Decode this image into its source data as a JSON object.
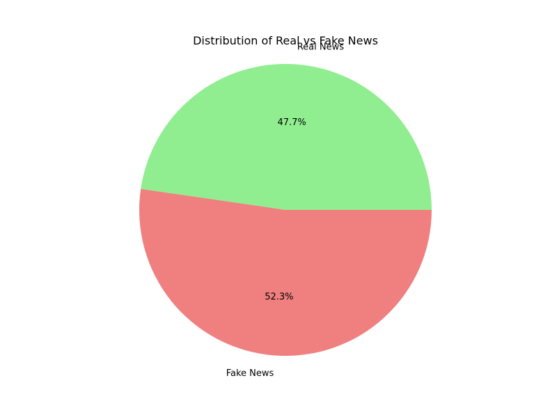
{
  "chart_data": {
    "type": "pie",
    "title": "Distribution of Real vs Fake News",
    "start_angle_deg": 0,
    "direction": "counterclockwise",
    "slices": [
      {
        "label": "Real News",
        "value": 47.7,
        "pct_label": "47.7%",
        "color": "#90ee90"
      },
      {
        "label": "Fake News",
        "value": 52.3,
        "pct_label": "52.3%",
        "color": "#f08080"
      }
    ]
  }
}
